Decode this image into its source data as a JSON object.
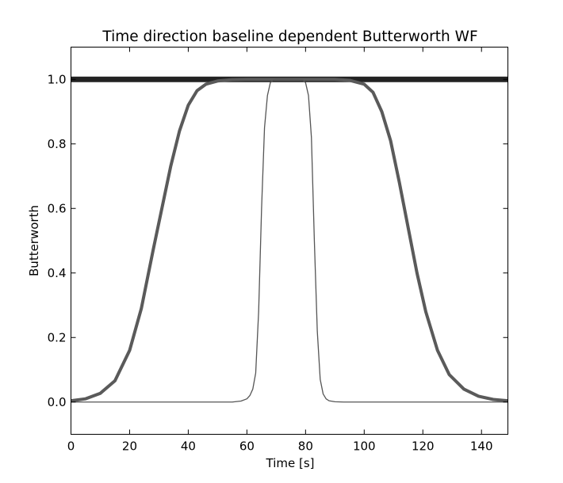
{
  "chart_data": {
    "type": "line",
    "title": "Time direction baseline dependent Butterworth WF",
    "xlabel": "Time [s]",
    "ylabel": "Butterworth",
    "xlim": [
      0,
      149
    ],
    "ylim": [
      -0.1,
      1.1
    ],
    "xticks": [
      0,
      20,
      40,
      60,
      80,
      100,
      120,
      140
    ],
    "yticks": [
      0.0,
      0.2,
      0.4,
      0.6,
      0.8,
      1.0
    ],
    "xtick_labels": [
      "0",
      "20",
      "40",
      "60",
      "80",
      "100",
      "120",
      "140"
    ],
    "ytick_labels": [
      "0.0",
      "0.2",
      "0.4",
      "0.6",
      "0.8",
      "1.0"
    ],
    "grid": false,
    "legend": "none",
    "series": [
      {
        "style": "thick-black",
        "color": "#222222",
        "x": [
          0,
          149
        ],
        "y": [
          1.0,
          1.0
        ]
      },
      {
        "style": "medium-gray",
        "color": "#5a5a5a",
        "x": [
          0,
          5,
          10,
          15,
          20,
          24,
          28,
          31,
          34,
          37,
          40,
          43,
          46,
          50,
          55,
          60,
          70,
          80,
          90,
          95,
          100,
          103,
          106,
          109,
          112,
          115,
          118,
          121,
          125,
          129,
          134,
          139,
          144,
          149
        ],
        "y": [
          0.004,
          0.01,
          0.027,
          0.066,
          0.16,
          0.29,
          0.47,
          0.6,
          0.73,
          0.84,
          0.92,
          0.965,
          0.985,
          0.995,
          0.999,
          1.0,
          1.0,
          1.0,
          1.0,
          0.997,
          0.985,
          0.96,
          0.9,
          0.81,
          0.68,
          0.54,
          0.4,
          0.28,
          0.16,
          0.085,
          0.04,
          0.018,
          0.008,
          0.004
        ]
      },
      {
        "style": "thin-gray",
        "color": "#555555",
        "x": [
          0,
          55,
          58,
          60,
          61,
          62,
          63,
          64,
          65,
          66,
          67,
          68,
          69,
          70,
          75,
          79,
          80,
          81,
          82,
          83,
          84,
          85,
          86,
          87,
          88,
          90,
          93,
          149
        ],
        "y": [
          0.0,
          0.0,
          0.003,
          0.01,
          0.02,
          0.04,
          0.09,
          0.28,
          0.6,
          0.85,
          0.95,
          0.99,
          0.998,
          1.0,
          1.0,
          0.998,
          0.99,
          0.95,
          0.82,
          0.5,
          0.22,
          0.07,
          0.025,
          0.01,
          0.004,
          0.001,
          0.0,
          0.0
        ]
      }
    ]
  }
}
